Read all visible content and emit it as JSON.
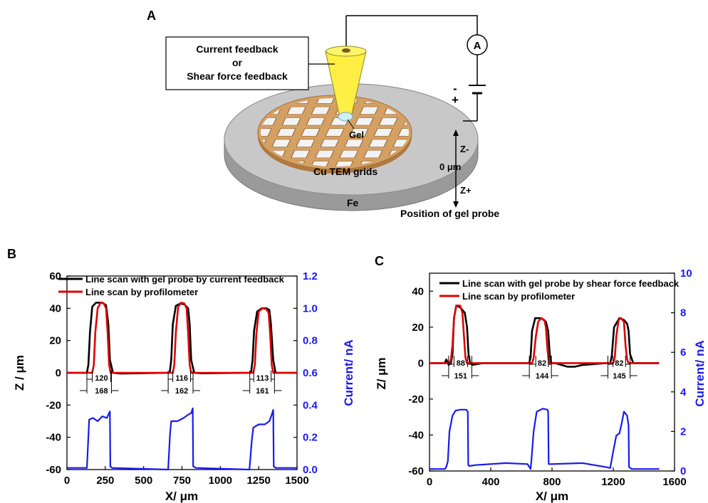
{
  "panel_a": {
    "label": "A",
    "feedback_line1": "Current feedback",
    "feedback_line2": "or",
    "feedback_line3": "Shear force feedback",
    "ammeter": "A",
    "battery_minus": "-",
    "battery_plus": "+",
    "gel": "Gel",
    "grid_label": "Cu TEM grids",
    "substrate": "Fe",
    "z_minus": "Z-",
    "zero": "0 μm",
    "z_plus": "Z+",
    "position_label": "Position of gel probe",
    "colors": {
      "probe": "#ffee44",
      "grid": "#d4a063",
      "disk": "#c8c8c8",
      "tip": "#cfefff"
    }
  },
  "chart_data": [
    {
      "panel": "B",
      "type": "line",
      "xlabel": "X/ μm",
      "ylabel": "Z / μm",
      "y2label": "Current/ nA",
      "xlim": [
        0,
        1500
      ],
      "ylim": [
        -60,
        60
      ],
      "y2lim": [
        0,
        1.2
      ],
      "xticks": [
        0,
        250,
        500,
        750,
        1000,
        1250,
        1500
      ],
      "yticks": [
        -60,
        -40,
        -20,
        0,
        20,
        40,
        60
      ],
      "y2ticks": [
        0.0,
        0.2,
        0.4,
        0.6,
        0.8,
        1.0,
        1.2
      ],
      "legend_position": "top",
      "series": [
        {
          "name": "Line scan with gel probe by current feedback",
          "color": "#000000",
          "axis": "left",
          "x": [
            0,
            130,
            140,
            150,
            165,
            190,
            230,
            255,
            270,
            280,
            300,
            350,
            650,
            670,
            680,
            690,
            710,
            740,
            765,
            790,
            800,
            810,
            830,
            880,
            1180,
            1200,
            1210,
            1220,
            1240,
            1270,
            1300,
            1320,
            1330,
            1345,
            1360,
            1420,
            1500
          ],
          "y": [
            0,
            0,
            5,
            25,
            41,
            43.5,
            43.5,
            42,
            30,
            8,
            0,
            -0.5,
            0,
            0,
            8,
            30,
            41.5,
            43,
            42.5,
            40,
            30,
            8,
            0,
            -0.3,
            0,
            0,
            8,
            26,
            38,
            40,
            40,
            39,
            30,
            8,
            0,
            0,
            0
          ]
        },
        {
          "name": "Line scan by profilometer",
          "color": "#e00000",
          "axis": "left",
          "x": [
            0,
            165,
            175,
            185,
            200,
            220,
            240,
            255,
            265,
            275,
            285,
            350,
            690,
            700,
            710,
            725,
            745,
            765,
            780,
            790,
            800,
            810,
            880,
            1215,
            1225,
            1235,
            1250,
            1275,
            1300,
            1315,
            1325,
            1335,
            1345,
            1420,
            1500
          ],
          "y": [
            0,
            0,
            5,
            25,
            40,
            43.5,
            43,
            40,
            25,
            5,
            0,
            0,
            0,
            5,
            25,
            41,
            43.5,
            43,
            40,
            25,
            5,
            0,
            0,
            0,
            5,
            24,
            38,
            40,
            39.5,
            37,
            24,
            5,
            0,
            0,
            0
          ]
        },
        {
          "name": "Current",
          "color": "#1a1aee",
          "axis": "right",
          "x": [
            0,
            130,
            137,
            145,
            170,
            200,
            230,
            260,
            280,
            283,
            295,
            660,
            672,
            680,
            720,
            760,
            790,
            810,
            820,
            823,
            840,
            1190,
            1205,
            1215,
            1250,
            1290,
            1320,
            1335,
            1345,
            1348,
            1360,
            1500
          ],
          "y": [
            0.01,
            0.01,
            0.15,
            0.31,
            0.32,
            0.3,
            0.33,
            0.32,
            0.36,
            0.02,
            0.01,
            0.0,
            0.22,
            0.3,
            0.3,
            0.32,
            0.34,
            0.35,
            0.38,
            0.02,
            0.01,
            0.0,
            0.18,
            0.26,
            0.28,
            0.28,
            0.3,
            0.34,
            0.37,
            0.02,
            0.01,
            0.01
          ]
        }
      ],
      "annotations": [
        {
          "inner": "120",
          "outer": "168"
        },
        {
          "inner": "116",
          "outer": "162"
        },
        {
          "inner": "113",
          "outer": "161"
        }
      ]
    },
    {
      "panel": "C",
      "type": "line",
      "xlabel": "X/ μm",
      "ylabel": "Z/ μm",
      "y2label": "Current/ nA",
      "xlim": [
        0,
        1600
      ],
      "ylim": [
        -60,
        50
      ],
      "y2lim": [
        0,
        10
      ],
      "xticks": [
        0,
        400,
        800,
        1200,
        1600
      ],
      "yticks": [
        -60,
        -40,
        -20,
        0,
        20,
        40
      ],
      "y2ticks": [
        0,
        2,
        4,
        6,
        8,
        10
      ],
      "legend_position": "top",
      "series": [
        {
          "name": "Line scan with gel probe by shear force feedback",
          "color": "#000000",
          "axis": "left",
          "x": [
            0,
            100,
            110,
            125,
            140,
            150,
            160,
            175,
            200,
            230,
            245,
            255,
            265,
            280,
            350,
            600,
            650,
            660,
            670,
            690,
            730,
            760,
            775,
            785,
            795,
            820,
            900,
            950,
            1000,
            1150,
            1180,
            1190,
            1205,
            1240,
            1270,
            1290,
            1300,
            1310,
            1330,
            1500
          ],
          "y": [
            0,
            0,
            2,
            -1,
            0,
            5,
            25,
            32,
            31,
            28,
            20,
            5,
            0,
            -1,
            0,
            0,
            0,
            3,
            18,
            25,
            25,
            23,
            18,
            5,
            0,
            0,
            -2,
            -2,
            -1,
            0,
            0,
            4,
            20,
            25,
            24,
            22,
            18,
            5,
            0,
            0
          ]
        },
        {
          "name": "Line scan by profilometer",
          "color": "#e00000",
          "axis": "left",
          "x": [
            0,
            130,
            140,
            150,
            160,
            175,
            200,
            215,
            225,
            235,
            245,
            350,
            650,
            670,
            680,
            695,
            710,
            730,
            750,
            760,
            770,
            780,
            900,
            1190,
            1200,
            1210,
            1220,
            1235,
            1250,
            1270,
            1280,
            1290,
            1300,
            1500
          ],
          "y": [
            0,
            0,
            2,
            10,
            25,
            32,
            32,
            28,
            15,
            3,
            0,
            0,
            0,
            0,
            3,
            15,
            23,
            25,
            24,
            20,
            8,
            0,
            0,
            0,
            0,
            3,
            15,
            24,
            25,
            23,
            10,
            2,
            0,
            0
          ]
        },
        {
          "name": "Current",
          "color": "#1a1aee",
          "axis": "right",
          "x": [
            0,
            100,
            110,
            120,
            130,
            150,
            170,
            200,
            240,
            250,
            253,
            260,
            300,
            500,
            640,
            660,
            665,
            680,
            700,
            740,
            770,
            775,
            778,
            800,
            1000,
            1150,
            1180,
            1200,
            1220,
            1240,
            1255,
            1270,
            1290,
            1300,
            1303,
            1320,
            1500
          ],
          "y": [
            0.1,
            0.1,
            0.2,
            0.5,
            2.0,
            2.8,
            3.05,
            3.1,
            3.1,
            3.0,
            0.3,
            0.25,
            0.3,
            0.4,
            0.35,
            0.1,
            0.5,
            2.0,
            3.0,
            3.15,
            3.1,
            3.0,
            0.35,
            0.35,
            0.4,
            0.2,
            0.15,
            1.0,
            1.8,
            1.9,
            2.4,
            3.0,
            2.8,
            2.3,
            0.2,
            0.1,
            0.1
          ]
        }
      ],
      "annotations": [
        {
          "inner": "88",
          "outer": "151"
        },
        {
          "inner": "82",
          "outer": "144"
        },
        {
          "inner": "82",
          "outer": "145"
        }
      ]
    }
  ]
}
